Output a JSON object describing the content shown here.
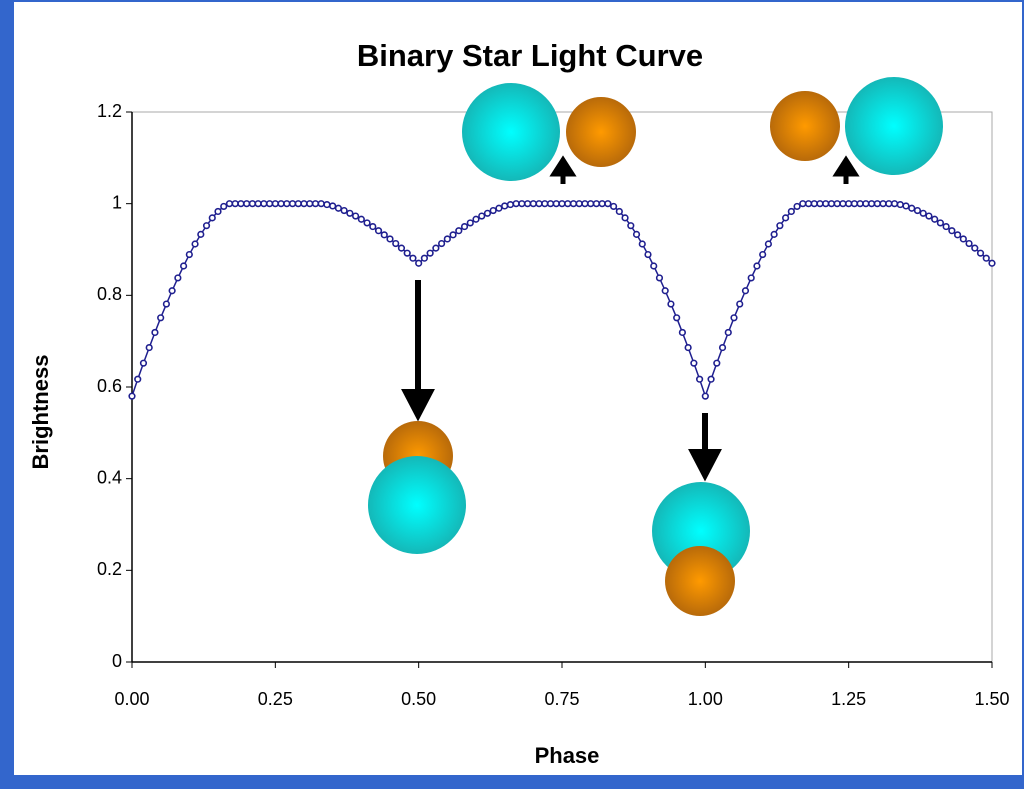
{
  "chart_data": {
    "type": "line",
    "title": "Binary Star Light Curve",
    "xlabel": "Phase",
    "ylabel": "Brightness",
    "x": [
      0,
      0.01,
      0.02,
      0.03,
      0.04,
      0.05,
      0.06,
      0.07,
      0.08,
      0.09,
      0.1,
      0.11,
      0.12,
      0.13,
      0.14,
      0.15,
      0.16,
      0.17,
      0.18,
      0.19,
      0.2,
      0.21,
      0.22,
      0.23,
      0.24,
      0.25,
      0.26,
      0.27,
      0.28,
      0.29,
      0.3,
      0.31,
      0.32,
      0.33,
      0.34,
      0.35,
      0.36,
      0.37,
      0.38,
      0.39,
      0.4,
      0.41,
      0.42,
      0.43,
      0.44,
      0.45,
      0.46,
      0.47,
      0.48,
      0.49,
      0.5,
      0.51,
      0.52,
      0.53,
      0.54,
      0.55,
      0.56,
      0.57,
      0.58,
      0.59,
      0.6,
      0.61,
      0.62,
      0.63,
      0.64,
      0.65,
      0.66,
      0.67,
      0.68,
      0.69,
      0.7,
      0.71,
      0.72,
      0.73,
      0.74,
      0.75,
      0.76,
      0.77,
      0.78,
      0.79,
      0.8,
      0.81,
      0.82,
      0.83,
      0.84,
      0.85,
      0.86,
      0.87,
      0.88,
      0.89,
      0.9,
      0.91,
      0.92,
      0.93,
      0.94,
      0.95,
      0.96,
      0.97,
      0.98,
      0.99,
      1,
      1.01,
      1.02,
      1.03,
      1.04,
      1.05,
      1.06,
      1.07,
      1.08,
      1.09,
      1.1,
      1.11,
      1.12,
      1.13,
      1.14,
      1.15,
      1.16,
      1.17,
      1.18,
      1.19,
      1.2,
      1.21,
      1.22,
      1.23,
      1.24,
      1.25,
      1.26,
      1.27,
      1.28,
      1.29,
      1.3,
      1.31,
      1.32,
      1.33,
      1.34,
      1.35,
      1.36,
      1.37,
      1.38,
      1.39,
      1.4,
      1.41,
      1.42,
      1.43,
      1.44,
      1.45,
      1.46,
      1.47,
      1.48,
      1.49,
      1.5
    ],
    "values": [
      0.58,
      0.617,
      0.652,
      0.686,
      0.719,
      0.751,
      0.781,
      0.81,
      0.838,
      0.864,
      0.889,
      0.912,
      0.933,
      0.952,
      0.969,
      0.983,
      0.994,
      1,
      1,
      1,
      1,
      1,
      1,
      1,
      1,
      1,
      1,
      1,
      1,
      1,
      1,
      1,
      1,
      1,
      0.998,
      0.995,
      0.99,
      0.985,
      0.979,
      0.973,
      0.966,
      0.958,
      0.95,
      0.941,
      0.932,
      0.923,
      0.913,
      0.903,
      0.892,
      0.881,
      0.87,
      0.881,
      0.892,
      0.903,
      0.913,
      0.923,
      0.932,
      0.941,
      0.95,
      0.958,
      0.966,
      0.973,
      0.979,
      0.985,
      0.99,
      0.995,
      0.998,
      1,
      1,
      1,
      1,
      1,
      1,
      1,
      1,
      1,
      1,
      1,
      1,
      1,
      1,
      1,
      1,
      1,
      0.994,
      0.983,
      0.969,
      0.952,
      0.933,
      0.912,
      0.889,
      0.864,
      0.838,
      0.81,
      0.781,
      0.751,
      0.719,
      0.686,
      0.652,
      0.617,
      0.58,
      0.617,
      0.652,
      0.686,
      0.719,
      0.751,
      0.781,
      0.81,
      0.838,
      0.864,
      0.889,
      0.912,
      0.933,
      0.952,
      0.969,
      0.983,
      0.994,
      1,
      1,
      1,
      1,
      1,
      1,
      1,
      1,
      1,
      1,
      1,
      1,
      1,
      1,
      1,
      1,
      1,
      0.998,
      0.995,
      0.99,
      0.985,
      0.979,
      0.973,
      0.966,
      0.958,
      0.95,
      0.941,
      0.932,
      0.923,
      0.913,
      0.903,
      0.892,
      0.881,
      0.87
    ],
    "color": "#1f1f8f",
    "markers": true,
    "xlim": [
      0,
      1.5
    ],
    "ylim": [
      0,
      1.2
    ],
    "xticks": [
      {
        "value": 0,
        "label": "0.00"
      },
      {
        "value": 0.25,
        "label": "0.25"
      },
      {
        "value": 0.5,
        "label": "0.50"
      },
      {
        "value": 0.75,
        "label": "0.75"
      },
      {
        "value": 1,
        "label": "1.00"
      },
      {
        "value": 1.25,
        "label": "1.25"
      },
      {
        "value": 1.5,
        "label": "1.50"
      }
    ],
    "yticks": [
      0,
      0.2,
      0.4,
      0.6,
      0.8,
      1,
      1.2
    ]
  }
}
